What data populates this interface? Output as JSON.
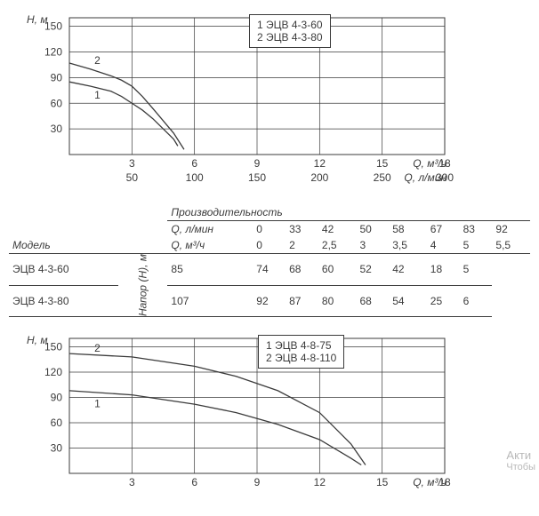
{
  "colors": {
    "line": "#3b3b3b",
    "grid": "#3b3b3b",
    "bg": "#ffffff",
    "faded": "#b9b9b9"
  },
  "chart1": {
    "y_label": "Н, м",
    "x_label_a": "Q, м³/ч",
    "x_label_b": "Q, л/мин",
    "y_ticks": [
      30,
      60,
      90,
      120,
      150
    ],
    "x_ticks_a": [
      3,
      6,
      9,
      12,
      15,
      18
    ],
    "x_ticks_b": [
      50,
      100,
      150,
      200,
      250,
      300
    ],
    "xlim": [
      0,
      18
    ],
    "ylim": [
      0,
      160
    ],
    "legend": {
      "1": "ЭЦВ 4-3-60",
      "2": "ЭЦВ 4-3-80"
    },
    "series": {
      "1": [
        [
          0,
          85
        ],
        [
          1,
          80
        ],
        [
          2,
          74
        ],
        [
          2.5,
          68
        ],
        [
          3,
          60
        ],
        [
          3.5,
          52
        ],
        [
          4,
          42
        ],
        [
          5,
          18
        ],
        [
          5.2,
          10
        ]
      ],
      "2": [
        [
          0,
          107
        ],
        [
          1,
          100
        ],
        [
          2,
          92
        ],
        [
          2.5,
          87
        ],
        [
          3,
          80
        ],
        [
          3.5,
          68
        ],
        [
          4,
          54
        ],
        [
          5,
          25
        ],
        [
          5.5,
          6
        ]
      ]
    },
    "curve_labels": {
      "1": "1",
      "2": "2"
    }
  },
  "table": {
    "model_header": "Модель",
    "perf_header": "Производительность",
    "row_q_lmin": {
      "label": "Q, л/мин",
      "vals": [
        "0",
        "33",
        "42",
        "50",
        "58",
        "67",
        "83",
        "92"
      ]
    },
    "row_q_m3h": {
      "label": "Q, м³/ч",
      "vals": [
        "0",
        "2",
        "2,5",
        "3",
        "3,5",
        "4",
        "5",
        "5,5"
      ]
    },
    "napor_label": "Напор (Н), м",
    "models": [
      {
        "name": "ЭЦВ 4-3-60",
        "vals": [
          "85",
          "74",
          "68",
          "60",
          "52",
          "42",
          "18",
          "5"
        ]
      },
      {
        "name": "ЭЦВ 4-3-80",
        "vals": [
          "107",
          "92",
          "87",
          "80",
          "68",
          "54",
          "25",
          "6"
        ]
      }
    ]
  },
  "chart2": {
    "y_label": "Н, м",
    "x_label": "Q, м³/ч",
    "y_ticks": [
      30,
      60,
      90,
      120,
      150
    ],
    "x_ticks": [
      3,
      6,
      9,
      12,
      15,
      18
    ],
    "xlim": [
      0,
      18
    ],
    "ylim": [
      0,
      160
    ],
    "legend": {
      "1": "ЭЦВ 4-8-75",
      "2": "ЭЦВ 4-8-110"
    },
    "series": {
      "1": [
        [
          0,
          98
        ],
        [
          3,
          93
        ],
        [
          6,
          82
        ],
        [
          8,
          72
        ],
        [
          10,
          58
        ],
        [
          12,
          40
        ],
        [
          13.5,
          18
        ],
        [
          14,
          10
        ]
      ],
      "2": [
        [
          0,
          142
        ],
        [
          3,
          138
        ],
        [
          6,
          127
        ],
        [
          8,
          115
        ],
        [
          10,
          98
        ],
        [
          12,
          72
        ],
        [
          13.5,
          35
        ],
        [
          14.2,
          10
        ]
      ]
    },
    "curve_labels": {
      "1": "1",
      "2": "2"
    }
  },
  "watermark": {
    "line1": "Акти",
    "line2": "Чтобы"
  }
}
